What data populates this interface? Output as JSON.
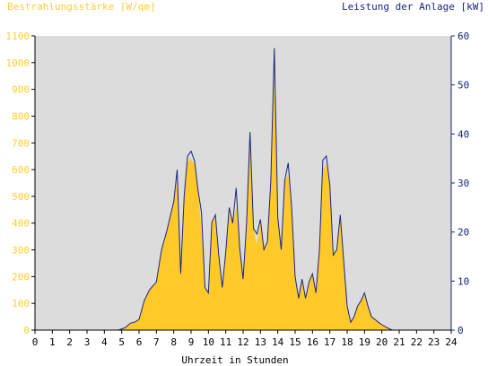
{
  "chart_data": {
    "type": "area",
    "ylabel_left": "Bestrahlungsstärke [W/qm]",
    "ylabel_right": "Leistung der Anlage [kW]",
    "xlabel": "Uhrzeit in Stunden",
    "xlim": [
      0,
      24
    ],
    "ylim_left": [
      0,
      1100
    ],
    "ylim_right": [
      0,
      60
    ],
    "x_ticks": [
      0,
      1,
      2,
      3,
      4,
      5,
      6,
      7,
      8,
      9,
      10,
      11,
      12,
      13,
      14,
      15,
      16,
      17,
      18,
      19,
      20,
      21,
      22,
      23,
      24
    ],
    "y_ticks_left": [
      0,
      100,
      200,
      300,
      400,
      500,
      600,
      700,
      800,
      900,
      1000,
      1100
    ],
    "y_ticks_right": [
      0,
      10,
      20,
      30,
      40,
      50,
      60
    ],
    "grid": false,
    "background": "#dcdcdc",
    "left_color": "#ffcc33",
    "right_color": "#1a237e",
    "series": [
      {
        "name": "Bestrahlungsstärke",
        "axis": "left",
        "color": "#ffc929",
        "x": [
          0,
          4.8,
          5.2,
          5.5,
          5.8,
          6.0,
          6.3,
          6.6,
          7.0,
          7.3,
          7.6,
          8.0,
          8.2,
          8.4,
          8.6,
          8.8,
          9.0,
          9.2,
          9.4,
          9.6,
          9.8,
          10.0,
          10.2,
          10.4,
          10.6,
          10.8,
          11.0,
          11.2,
          11.4,
          11.6,
          11.8,
          12.0,
          12.2,
          12.4,
          12.6,
          12.8,
          13.0,
          13.2,
          13.4,
          13.6,
          13.8,
          14.0,
          14.2,
          14.4,
          14.6,
          14.8,
          15.0,
          15.2,
          15.4,
          15.6,
          15.8,
          16.0,
          16.2,
          16.4,
          16.6,
          16.8,
          17.0,
          17.2,
          17.4,
          17.6,
          17.8,
          18.0,
          18.2,
          18.4,
          18.6,
          18.8,
          19.0,
          19.2,
          19.4,
          19.6,
          19.8,
          20.0,
          20.3,
          20.6,
          21.0,
          24
        ],
        "y": [
          0,
          0,
          10,
          25,
          30,
          40,
          110,
          150,
          180,
          300,
          370,
          480,
          560,
          230,
          480,
          630,
          640,
          620,
          520,
          380,
          160,
          140,
          400,
          420,
          280,
          160,
          290,
          440,
          400,
          460,
          310,
          190,
          400,
          690,
          380,
          320,
          400,
          300,
          330,
          540,
          950,
          420,
          300,
          560,
          580,
          460,
          200,
          120,
          190,
          120,
          180,
          210,
          140,
          300,
          600,
          620,
          540,
          280,
          300,
          410,
          260,
          90,
          30,
          50,
          90,
          110,
          130,
          90,
          50,
          40,
          30,
          20,
          10,
          0,
          0,
          0
        ]
      },
      {
        "name": "Leistung der Anlage",
        "axis": "right",
        "color": "#1a237e",
        "x": [
          0,
          4.8,
          5.2,
          5.5,
          5.8,
          6.0,
          6.3,
          6.6,
          7.0,
          7.3,
          7.6,
          8.0,
          8.2,
          8.4,
          8.6,
          8.8,
          9.0,
          9.2,
          9.4,
          9.6,
          9.8,
          10.0,
          10.2,
          10.4,
          10.6,
          10.8,
          11.0,
          11.2,
          11.4,
          11.6,
          11.8,
          12.0,
          12.2,
          12.4,
          12.6,
          12.8,
          13.0,
          13.2,
          13.4,
          13.6,
          13.8,
          14.0,
          14.2,
          14.4,
          14.6,
          14.8,
          15.0,
          15.2,
          15.4,
          15.6,
          15.8,
          16.0,
          16.2,
          16.4,
          16.6,
          16.8,
          17.0,
          17.2,
          17.4,
          17.6,
          17.8,
          18.0,
          18.2,
          18.4,
          18.6,
          18.8,
          19.0,
          19.2,
          19.4,
          19.6,
          19.8,
          20.0,
          20.3,
          20.6,
          21.0,
          24
        ],
        "y": [
          0,
          0,
          0.5,
          1.4,
          1.7,
          2.2,
          6,
          8.2,
          9.8,
          16.4,
          20.2,
          26.2,
          32.7,
          11.5,
          27.3,
          35.5,
          36.5,
          34.5,
          28.6,
          24,
          8.7,
          7.6,
          22,
          23.5,
          15.2,
          8.7,
          16,
          25,
          21.8,
          29,
          17,
          10.4,
          21.8,
          40.4,
          20.7,
          19.6,
          22.6,
          16.4,
          18,
          30.5,
          57.5,
          22.9,
          16.4,
          30.5,
          34.1,
          25.1,
          10.9,
          6.5,
          10.4,
          6.5,
          9.8,
          11.5,
          7.6,
          16.4,
          34.7,
          35.5,
          29.5,
          15.3,
          16.4,
          23.5,
          14.2,
          4.9,
          1.6,
          2.7,
          4.9,
          6,
          7.6,
          4.9,
          2.7,
          2.2,
          1.6,
          1.1,
          0.5,
          0,
          0,
          0
        ]
      }
    ]
  }
}
